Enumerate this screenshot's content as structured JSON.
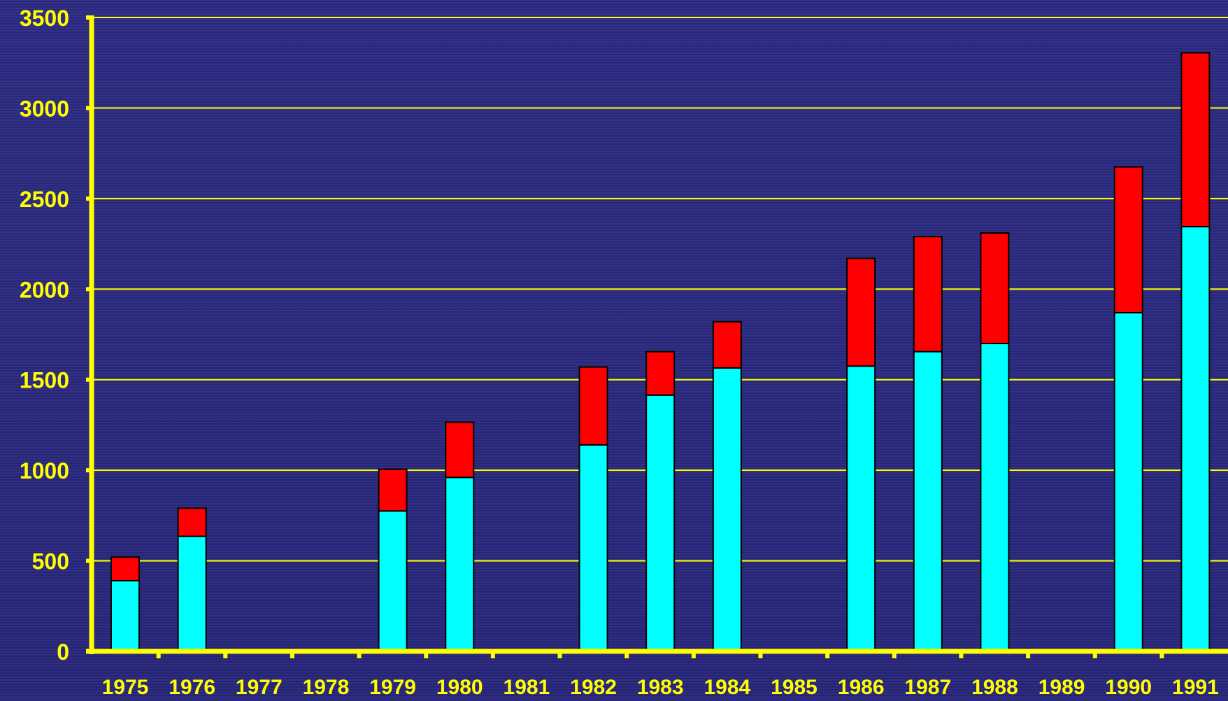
{
  "chart_data": {
    "type": "bar",
    "stacked": true,
    "categories": [
      "1975",
      "1976",
      "1977",
      "1978",
      "1979",
      "1980",
      "1981",
      "1982",
      "1983",
      "1984",
      "1985",
      "1986",
      "1987",
      "1988",
      "1989",
      "1990",
      "1991"
    ],
    "series": [
      {
        "color": "#00ffff",
        "values": [
          390,
          635,
          null,
          null,
          775,
          960,
          null,
          1140,
          1415,
          1565,
          null,
          1575,
          1655,
          1700,
          null,
          1870,
          2345
        ]
      },
      {
        "color": "#ff0000",
        "values": [
          130,
          155,
          null,
          null,
          230,
          305,
          null,
          430,
          240,
          255,
          null,
          595,
          635,
          610,
          null,
          805,
          960
        ]
      }
    ],
    "ylim": [
      0,
      3500
    ],
    "yticks": [
      0,
      500,
      1000,
      1500,
      2000,
      2500,
      3000,
      3500
    ],
    "grid": true,
    "colors": {
      "axis": "#ffff00",
      "gridline": "#ffff00",
      "background": "#2b2a7e"
    }
  }
}
